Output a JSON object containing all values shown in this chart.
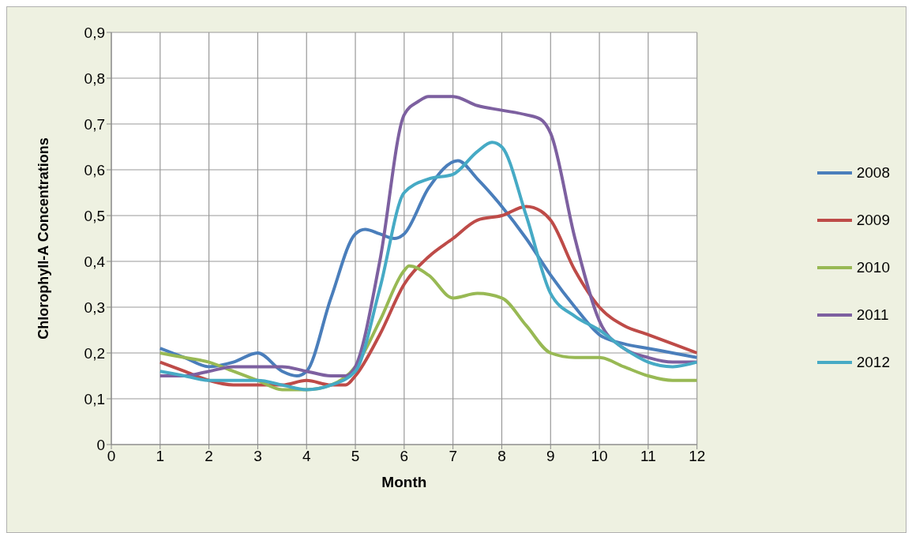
{
  "chart_data": {
    "type": "line",
    "xlabel": "Month",
    "ylabel": "Chlorophyll-A Concentrations",
    "xlim": [
      0,
      12
    ],
    "xticks": [
      0,
      1,
      2,
      3,
      4,
      5,
      6,
      7,
      8,
      9,
      10,
      11,
      12
    ],
    "ylim": [
      0,
      0.9
    ],
    "yticks": [
      0,
      {
        "value": 0.1,
        "label": "0,1"
      },
      {
        "value": 0.2,
        "label": "0,2"
      },
      {
        "value": 0.3,
        "label": "0,3"
      },
      {
        "value": 0.4,
        "label": "0,4"
      },
      {
        "value": 0.5,
        "label": "0,5"
      },
      {
        "value": 0.6,
        "label": "0,6"
      },
      {
        "value": 0.7,
        "label": "0,7"
      },
      {
        "value": 0.8,
        "label": "0,8"
      },
      {
        "value": 0.9,
        "label": "0,9"
      }
    ],
    "grid": true,
    "legend": "right",
    "series": [
      {
        "name": "2008",
        "color": "#4a7ebb",
        "x": [
          1,
          1.5,
          2,
          2.5,
          3,
          3.5,
          3.8,
          4,
          4.5,
          5,
          5.2,
          5.5,
          5.8,
          6,
          6.5,
          7.1,
          7.5,
          8,
          8.5,
          9,
          9.5,
          10,
          10.5,
          11,
          11.5,
          12
        ],
        "values": [
          0.21,
          0.19,
          0.17,
          0.18,
          0.2,
          0.16,
          0.15,
          0.16,
          0.32,
          0.46,
          0.47,
          0.46,
          0.45,
          0.46,
          0.56,
          0.62,
          0.58,
          0.52,
          0.45,
          0.37,
          0.3,
          0.24,
          0.22,
          0.21,
          0.2,
          0.19
        ]
      },
      {
        "name": "2009",
        "color": "#be4b48",
        "x": [
          1,
          1.5,
          2,
          2.5,
          3,
          3.5,
          4,
          4.5,
          4.8,
          5,
          5.5,
          6,
          6.5,
          7,
          7.5,
          8,
          8.5,
          8.8,
          9,
          9.5,
          10,
          10.5,
          11,
          11.5,
          12
        ],
        "values": [
          0.18,
          0.16,
          0.14,
          0.13,
          0.13,
          0.13,
          0.14,
          0.13,
          0.13,
          0.15,
          0.24,
          0.35,
          0.41,
          0.45,
          0.49,
          0.5,
          0.52,
          0.51,
          0.49,
          0.38,
          0.3,
          0.26,
          0.24,
          0.22,
          0.2
        ]
      },
      {
        "name": "2010",
        "color": "#98b954",
        "x": [
          1,
          1.5,
          2,
          2.5,
          3,
          3.5,
          3.8,
          4,
          4.5,
          5,
          5.5,
          6,
          6.1,
          6.5,
          7,
          7.5,
          8,
          8.5,
          9,
          9.5,
          10,
          10.5,
          11,
          11.5,
          12
        ],
        "values": [
          0.2,
          0.19,
          0.18,
          0.16,
          0.14,
          0.12,
          0.12,
          0.12,
          0.13,
          0.17,
          0.27,
          0.38,
          0.39,
          0.37,
          0.32,
          0.33,
          0.32,
          0.26,
          0.2,
          0.19,
          0.19,
          0.17,
          0.15,
          0.14,
          0.14
        ]
      },
      {
        "name": "2011",
        "color": "#7d60a0",
        "x": [
          1,
          1.5,
          2,
          2.5,
          3,
          3.5,
          4,
          4.5,
          4.8,
          5,
          5.5,
          6,
          6.3,
          6.5,
          7,
          7.5,
          8,
          8.5,
          8.8,
          9,
          9.5,
          10,
          10.5,
          11,
          11.5,
          12
        ],
        "values": [
          0.15,
          0.15,
          0.16,
          0.17,
          0.17,
          0.17,
          0.16,
          0.15,
          0.15,
          0.17,
          0.4,
          0.72,
          0.75,
          0.76,
          0.76,
          0.74,
          0.73,
          0.72,
          0.71,
          0.68,
          0.45,
          0.27,
          0.21,
          0.19,
          0.18,
          0.18
        ]
      },
      {
        "name": "2012",
        "color": "#46aac5",
        "x": [
          1,
          1.5,
          2,
          2.5,
          3,
          3.5,
          4,
          4.5,
          5,
          5.5,
          6,
          6.5,
          7,
          7.5,
          7.8,
          8,
          8.5,
          9,
          9.5,
          10,
          10.5,
          11,
          11.5,
          12
        ],
        "values": [
          0.16,
          0.15,
          0.14,
          0.14,
          0.14,
          0.13,
          0.12,
          0.13,
          0.16,
          0.34,
          0.55,
          0.58,
          0.59,
          0.64,
          0.66,
          0.65,
          0.5,
          0.33,
          0.28,
          0.25,
          0.21,
          0.18,
          0.17,
          0.18
        ]
      }
    ]
  }
}
